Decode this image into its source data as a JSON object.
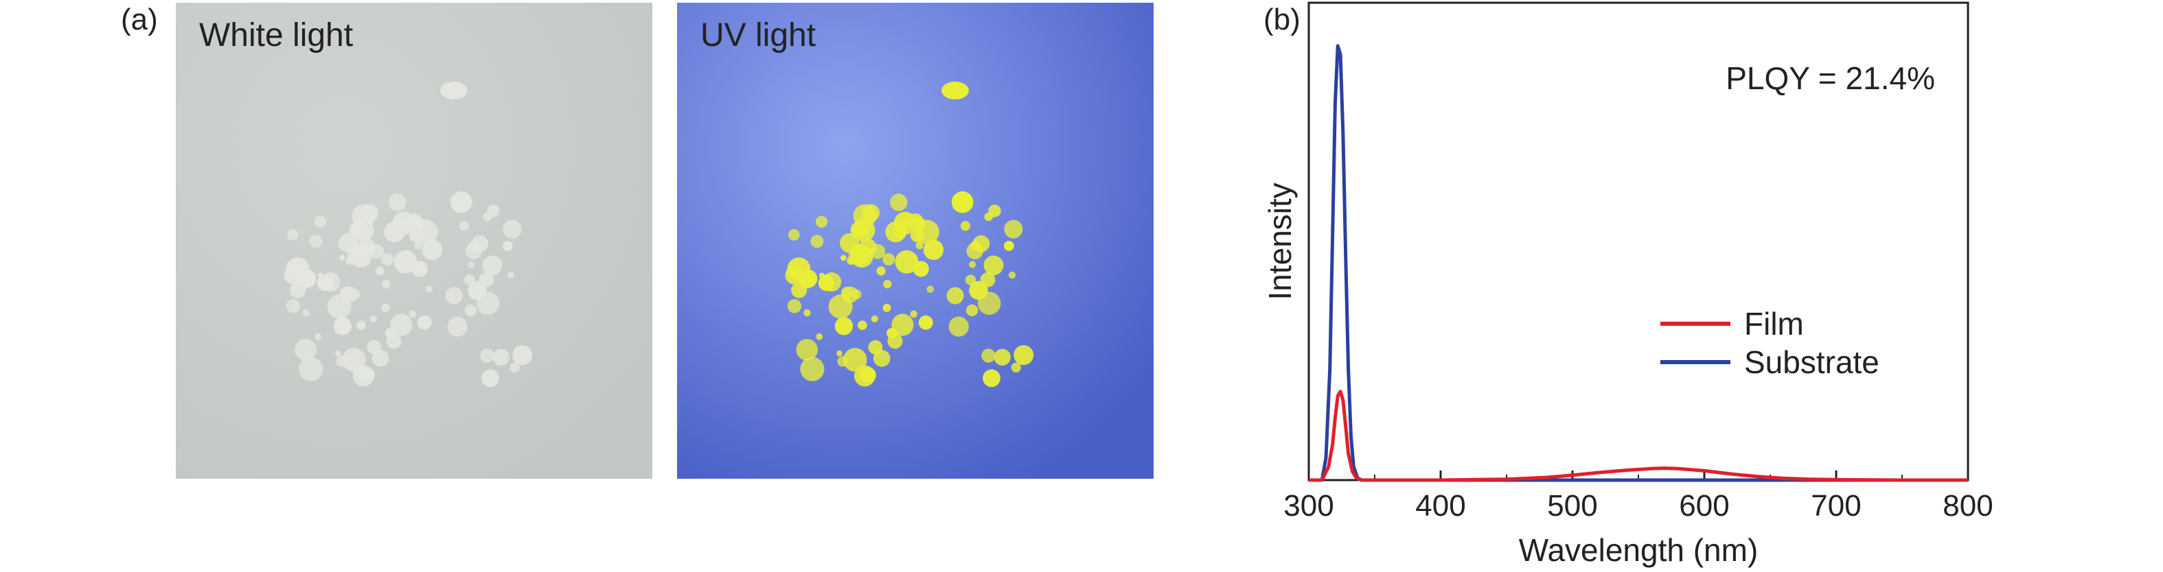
{
  "figure": {
    "panel_a_label": "(a)",
    "panel_b_label": "(b)"
  },
  "photos": {
    "white": {
      "caption": "White light",
      "background": "#c3c8c4",
      "particle_color": "#e4e6e1"
    },
    "uv": {
      "caption": "UV light",
      "background": "#4a5fc8",
      "particle_color": "#e9ef34"
    }
  },
  "chart_data": {
    "type": "line",
    "xlabel": "Wavelength (nm)",
    "ylabel": "Intensity",
    "xlim": [
      300,
      800
    ],
    "ylim": [
      0,
      1.0
    ],
    "xticks": [
      300,
      400,
      500,
      600,
      700,
      800
    ],
    "y_tick_labels_shown": false,
    "grid": false,
    "legend_position": "right-middle",
    "annotation": "PLQY = 21.4%",
    "series": [
      {
        "name": "Film",
        "color": "#e0202c",
        "x": [
          300,
          310,
          315,
          318,
          320,
          322,
          324,
          326,
          328,
          330,
          333,
          336,
          340,
          360,
          400,
          450,
          480,
          500,
          520,
          540,
          560,
          570,
          580,
          600,
          620,
          640,
          660,
          680,
          700,
          750,
          800
        ],
        "y": [
          0,
          0.0,
          0.03,
          0.08,
          0.14,
          0.19,
          0.2,
          0.18,
          0.12,
          0.06,
          0.02,
          0.005,
          0.0,
          0.0,
          0.0,
          0.002,
          0.006,
          0.011,
          0.017,
          0.022,
          0.026,
          0.027,
          0.026,
          0.021,
          0.014,
          0.008,
          0.004,
          0.002,
          0.001,
          0.0,
          0.0
        ]
      },
      {
        "name": "Substrate",
        "color": "#2a3fa0",
        "x": [
          300,
          310,
          313,
          316,
          318,
          320,
          322,
          324,
          326,
          328,
          330,
          332,
          334,
          337,
          340,
          350,
          400,
          500,
          600,
          700,
          800
        ],
        "y": [
          0,
          0.0,
          0.05,
          0.25,
          0.55,
          0.85,
          0.98,
          0.96,
          0.78,
          0.5,
          0.25,
          0.1,
          0.03,
          0.005,
          0.0,
          0.0,
          0.0,
          0.0,
          0.0,
          0.0,
          0.0
        ]
      }
    ]
  }
}
